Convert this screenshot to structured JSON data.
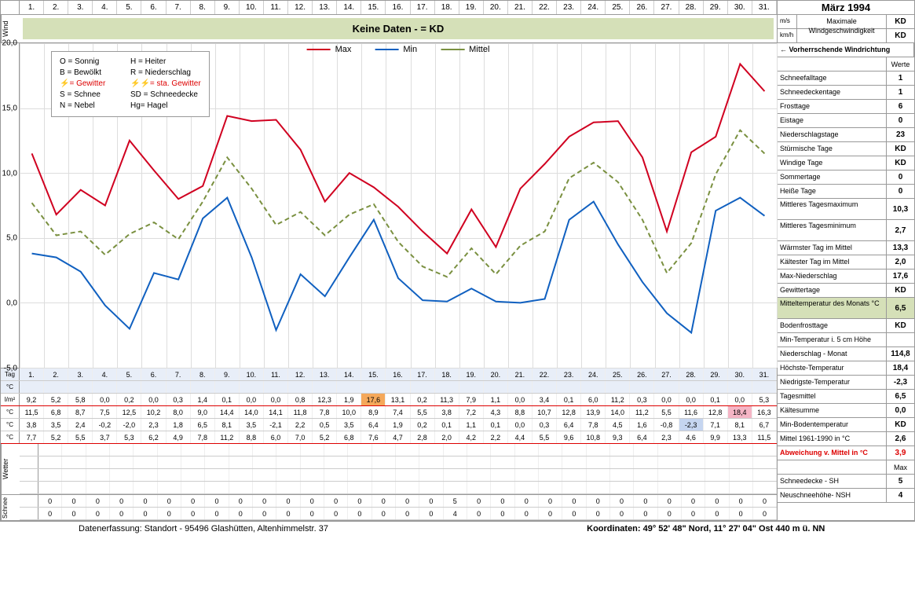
{
  "title": "März 1994",
  "days": [
    "1.",
    "2.",
    "3.",
    "4.",
    "5.",
    "6.",
    "7.",
    "8.",
    "9.",
    "10.",
    "11.",
    "12.",
    "13.",
    "14.",
    "15.",
    "16.",
    "17.",
    "18.",
    "19.",
    "20.",
    "21.",
    "22.",
    "23.",
    "24.",
    "25.",
    "26.",
    "27.",
    "28.",
    "29.",
    "30.",
    "31."
  ],
  "wind": {
    "label": "Wind",
    "no_data": "Keine Daten -  = KD",
    "ms_label": "m/s",
    "kmh_label": "km/h",
    "max_label": "Maximale Windgeschwindigkeit",
    "ms_val": "KD",
    "kmh_val": "KD",
    "dir_label": "← Vorherrschende Windrichtung"
  },
  "chart": {
    "ymin": -5,
    "ymax": 20,
    "ystep": 5,
    "yticks": [
      "20,0",
      "15,0",
      "10,0",
      "5,0",
      "0,0",
      "-5,0"
    ],
    "colors": {
      "max": "#d00020",
      "min": "#1060c0",
      "mittel": "#7a9040",
      "grid": "#dddddd"
    },
    "legend": {
      "max": "Max",
      "min": "Min",
      "mittel": "Mittel"
    },
    "legend_box": [
      {
        "l": "O = Sonnig",
        "r": "H = Heiter"
      },
      {
        "l": "B = Bewölkt",
        "r": "R = Niederschlag"
      },
      {
        "l": "⚡= Gewitter",
        "r": "⚡⚡= sta. Gewitter",
        "red": true
      },
      {
        "l": "S = Schnee",
        "r": "SD = Schneedecke"
      },
      {
        "l": "N = Nebel",
        "r": "Hg= Hagel"
      }
    ],
    "max": [
      11.5,
      6.8,
      8.7,
      7.5,
      12.5,
      10.2,
      8.0,
      9.0,
      14.4,
      14.0,
      14.1,
      11.8,
      7.8,
      10.0,
      8.9,
      7.4,
      5.5,
      3.8,
      7.2,
      4.3,
      8.8,
      10.7,
      12.8,
      13.9,
      14.0,
      11.2,
      5.5,
      11.6,
      12.8,
      18.4,
      16.3
    ],
    "min": [
      3.8,
      3.5,
      2.4,
      -0.2,
      -2.0,
      2.3,
      1.8,
      6.5,
      8.1,
      3.5,
      -2.1,
      2.2,
      0.5,
      3.5,
      6.4,
      1.9,
      0.2,
      0.1,
      1.1,
      0.1,
      0.0,
      0.3,
      6.4,
      7.8,
      4.5,
      1.6,
      -0.8,
      -2.3,
      7.1,
      8.1,
      6.7
    ],
    "mittel": [
      7.7,
      5.2,
      5.5,
      3.7,
      5.3,
      6.2,
      4.9,
      7.8,
      11.2,
      8.8,
      6.0,
      7.0,
      5.2,
      6.8,
      7.6,
      4.7,
      2.8,
      2.0,
      4.2,
      2.2,
      4.4,
      5.5,
      9.6,
      10.8,
      9.3,
      6.4,
      2.3,
      4.6,
      9.9,
      13.3,
      11.5
    ]
  },
  "rows": {
    "tag_label": "Tag",
    "c_label": "°C",
    "lm_label": "l/m²",
    "niederschlag": [
      "9,2",
      "5,2",
      "5,8",
      "0,0",
      "0,2",
      "0,0",
      "0,3",
      "1,4",
      "0,1",
      "0,0",
      "0,0",
      "0,8",
      "12,3",
      "1,9",
      "17,6",
      "13,1",
      "0,2",
      "11,3",
      "7,9",
      "1,1",
      "0,0",
      "3,4",
      "0,1",
      "6,0",
      "11,2",
      "0,3",
      "0,0",
      "0,0",
      "0,1",
      "0,0",
      "5,3"
    ],
    "hoechste": [
      "11,5",
      "6,8",
      "8,7",
      "7,5",
      "12,5",
      "10,2",
      "8,0",
      "9,0",
      "14,4",
      "14,0",
      "14,1",
      "11,8",
      "7,8",
      "10,0",
      "8,9",
      "7,4",
      "5,5",
      "3,8",
      "7,2",
      "4,3",
      "8,8",
      "10,7",
      "12,8",
      "13,9",
      "14,0",
      "11,2",
      "5,5",
      "11,6",
      "12,8",
      "18,4",
      "16,3"
    ],
    "niedrigste": [
      "3,8",
      "3,5",
      "2,4",
      "-0,2",
      "-2,0",
      "2,3",
      "1,8",
      "6,5",
      "8,1",
      "3,5",
      "-2,1",
      "2,2",
      "0,5",
      "3,5",
      "6,4",
      "1,9",
      "0,2",
      "0,1",
      "1,1",
      "0,1",
      "0,0",
      "0,3",
      "6,4",
      "7,8",
      "4,5",
      "1,6",
      "-0,8",
      "-2,3",
      "7,1",
      "8,1",
      "6,7"
    ],
    "tagesmittel": [
      "7,7",
      "5,2",
      "5,5",
      "3,7",
      "5,3",
      "6,2",
      "4,9",
      "7,8",
      "11,2",
      "8,8",
      "6,0",
      "7,0",
      "5,2",
      "6,8",
      "7,6",
      "4,7",
      "2,8",
      "2,0",
      "4,2",
      "2,2",
      "4,4",
      "5,5",
      "9,6",
      "10,8",
      "9,3",
      "6,4",
      "2,3",
      "4,6",
      "9,9",
      "13,3",
      "11,5"
    ],
    "schneedecke": [
      "0",
      "0",
      "0",
      "0",
      "0",
      "0",
      "0",
      "0",
      "0",
      "0",
      "0",
      "0",
      "0",
      "0",
      "0",
      "0",
      "0",
      "5",
      "0",
      "0",
      "0",
      "0",
      "0",
      "0",
      "0",
      "0",
      "0",
      "0",
      "0",
      "0",
      "0"
    ],
    "neuschnee": [
      "0",
      "0",
      "0",
      "0",
      "0",
      "0",
      "0",
      "0",
      "0",
      "0",
      "0",
      "0",
      "0",
      "0",
      "0",
      "0",
      "0",
      "4",
      "0",
      "0",
      "0",
      "0",
      "0",
      "0",
      "0",
      "0",
      "0",
      "0",
      "0",
      "0",
      "0"
    ],
    "hl_niederschlag_idx": 14,
    "hl_hoechste_idx": 29,
    "hl_niedrigste_idx": 27
  },
  "side": {
    "werte": "Werte",
    "items1": [
      {
        "l": "Schneefalltage",
        "v": "1"
      },
      {
        "l": "Schneedeckentage",
        "v": "1"
      },
      {
        "l": "Frosttage",
        "v": "6"
      },
      {
        "l": "Eistage",
        "v": "0"
      },
      {
        "l": "Niederschlagstage",
        "v": "23"
      },
      {
        "l": "Stürmische Tage",
        "v": "KD"
      },
      {
        "l": "Windige Tage",
        "v": "KD"
      },
      {
        "l": "Sommertage",
        "v": "0"
      },
      {
        "l": "Heiße Tage",
        "v": "0"
      }
    ],
    "tall1": [
      {
        "l": "Mittleres Tagesmaximum",
        "v": "10,3"
      },
      {
        "l": "Mittleres Tagesminimum",
        "v": "2,7"
      }
    ],
    "items2": [
      {
        "l": "Wärmster Tag im Mittel",
        "v": "13,3"
      },
      {
        "l": "Kältester Tag im Mittel",
        "v": "2,0"
      },
      {
        "l": "Max-Niederschlag",
        "v": "17,6"
      },
      {
        "l": "Gewittertage",
        "v": "KD"
      }
    ],
    "mitteltemp": {
      "l": "Mitteltemperatur des Monats °C",
      "v": "6,5"
    },
    "bodenfrost": {
      "l": "Bodenfrosttage",
      "v": "KD"
    },
    "mintemp5": "Min-Temperatur i. 5 cm Höhe",
    "table_rows": [
      {
        "l": "Niederschlag - Monat",
        "v": "114,8"
      },
      {
        "l": "Höchste-Temperatur",
        "v": "18,4"
      },
      {
        "l": "Niedrigste-Temperatur",
        "v": "-2,3"
      },
      {
        "l": "Tagesmittel",
        "v": "6,5"
      },
      {
        "l": "Kältesumme",
        "v": "0,0"
      },
      {
        "l": "Min-Bodentemperatur",
        "v": "KD"
      },
      {
        "l": "Mittel 1961-1990 in °C",
        "v": "2,6"
      }
    ],
    "abweichung": {
      "l": "Abweichung v. Mittel in °C",
      "v": "3,9"
    },
    "max_lbl": "Max",
    "schneedecke": {
      "l": "Schneedecke -   SH",
      "v": "5"
    },
    "neuschnee": {
      "l": "Neuschneehöhe- NSH",
      "v": "4"
    }
  },
  "wetter_label": "Wetter",
  "schnee_label": "Schnee",
  "footer": {
    "left": "Datenerfassung:  Standort -  95496  Glashütten, Altenhimmelstr. 37",
    "right": "Koordinaten:  49° 52' 48\" Nord,   11° 27' 04\" Ost   440 m ü. NN"
  }
}
